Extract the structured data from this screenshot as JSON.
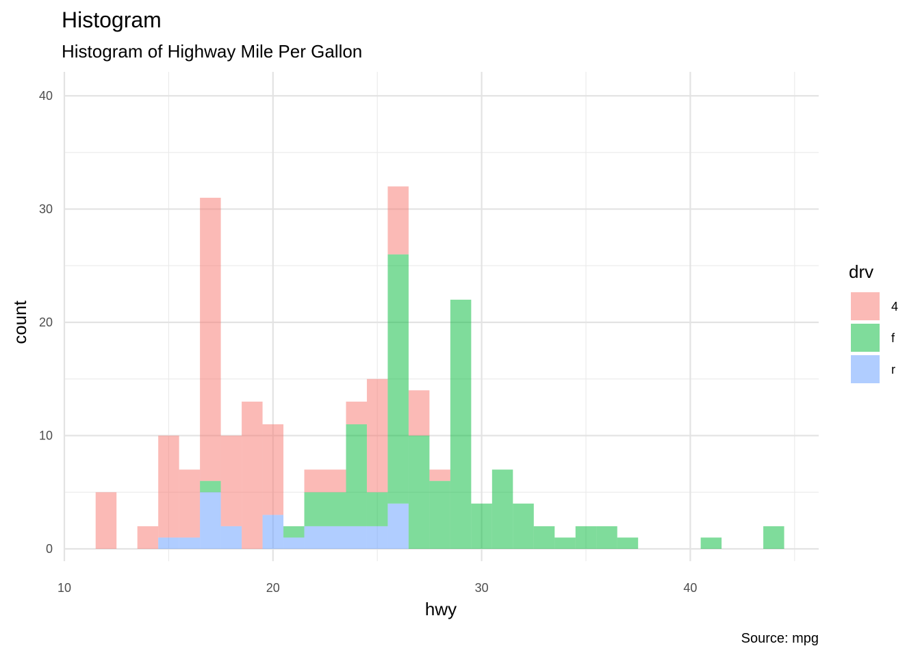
{
  "chart_data": {
    "type": "bar",
    "stacked": true,
    "title": "Histogram",
    "subtitle": "Histogram of Highway Mile Per Gallon",
    "xlabel": "hwy",
    "ylabel": "count",
    "caption": "Source: mpg",
    "xlim": [
      10,
      46
    ],
    "ylim": [
      0,
      42
    ],
    "x_ticks": [
      10,
      20,
      30,
      40
    ],
    "y_ticks": [
      0,
      10,
      20,
      30,
      40
    ],
    "grid": true,
    "legend": {
      "title": "drv",
      "position": "right"
    },
    "bins": [
      12,
      13,
      14,
      15,
      16,
      17,
      18,
      19,
      20,
      21,
      22,
      23,
      24,
      25,
      26,
      27,
      28,
      29,
      30,
      31,
      32,
      33,
      34,
      35,
      36,
      37,
      38,
      39,
      40,
      41,
      42,
      43,
      44
    ],
    "bin_width": 1,
    "series": [
      {
        "name": "r",
        "color": "#619CFF",
        "values": [
          0,
          0,
          0,
          1,
          1,
          5,
          2,
          0,
          3,
          1,
          2,
          2,
          2,
          2,
          4,
          0,
          0,
          0,
          0,
          0,
          0,
          0,
          0,
          0,
          0,
          0,
          0,
          0,
          0,
          0,
          0,
          0,
          0
        ]
      },
      {
        "name": "f",
        "color": "#00BA38",
        "values": [
          0,
          0,
          0,
          0,
          0,
          1,
          0,
          0,
          0,
          1,
          3,
          3,
          9,
          3,
          22,
          10,
          6,
          22,
          4,
          7,
          4,
          2,
          1,
          2,
          2,
          1,
          0,
          0,
          0,
          1,
          0,
          0,
          2
        ]
      },
      {
        "name": "4",
        "color": "#F8766D",
        "values": [
          5,
          0,
          2,
          9,
          6,
          25,
          8,
          13,
          8,
          0,
          2,
          2,
          2,
          10,
          6,
          4,
          1,
          0,
          0,
          0,
          0,
          0,
          0,
          0,
          0,
          0,
          0,
          0,
          0,
          0,
          0,
          0,
          0
        ]
      }
    ],
    "legend_order": [
      "4",
      "f",
      "r"
    ]
  }
}
